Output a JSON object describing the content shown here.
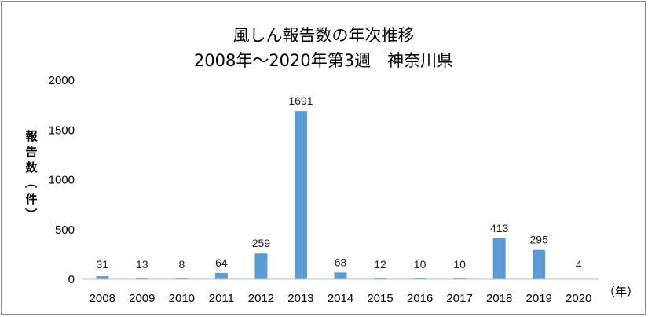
{
  "chart_data": {
    "type": "bar",
    "title": "風しん報告数の年次推移",
    "subtitle": "2008年～2020年第3週　神奈川県",
    "ylabel": "報告数（件）",
    "xlabel_unit": "（年）",
    "categories": [
      "2008",
      "2009",
      "2010",
      "2011",
      "2012",
      "2013",
      "2014",
      "2015",
      "2016",
      "2017",
      "2018",
      "2019",
      "2020"
    ],
    "values": [
      31,
      13,
      8,
      64,
      259,
      1691,
      68,
      12,
      10,
      10,
      413,
      295,
      4
    ],
    "ylim": [
      0,
      2000
    ],
    "yticks": [
      0,
      500,
      1000,
      1500,
      2000
    ],
    "grid": false,
    "legend": "none",
    "bar_color": "#5b9bd5"
  }
}
